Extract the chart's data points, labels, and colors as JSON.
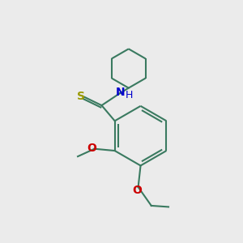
{
  "background_color": "#ebebeb",
  "bond_color": "#3a7a60",
  "S_color": "#999900",
  "N_color": "#0000cc",
  "O_color": "#cc0000",
  "line_width": 1.5,
  "fig_width": 3.0,
  "fig_height": 3.0,
  "dpi": 100,
  "xlim": [
    0,
    10
  ],
  "ylim": [
    0,
    10
  ]
}
